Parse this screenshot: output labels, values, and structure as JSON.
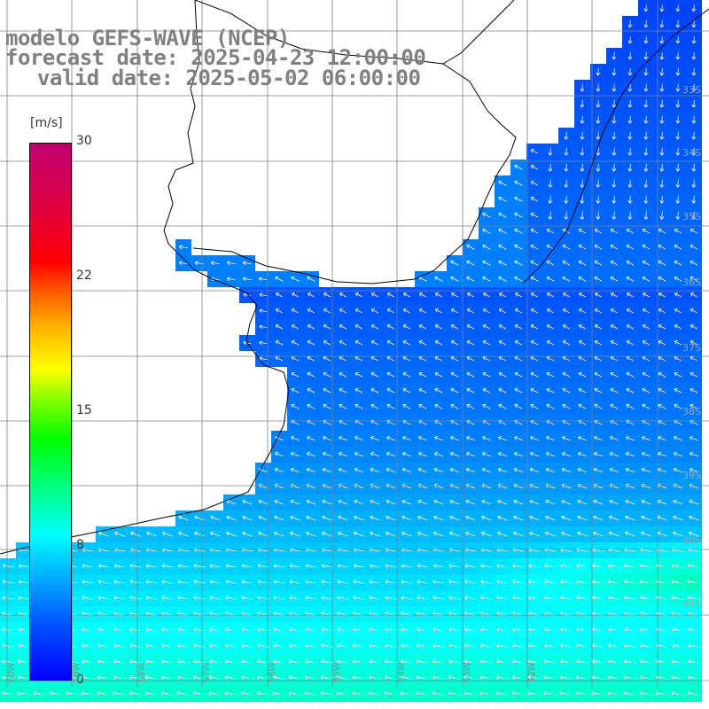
{
  "title": {
    "line1": "modelo GEFS-WAVE (NCEP)",
    "line2": "forecast date: 2025-04-23 12:00:00",
    "line3": "valid date: 2025-05-02 06:00:00"
  },
  "colorbar": {
    "unit": "[m/s]",
    "ticks": [
      "30",
      "22",
      "15",
      "8",
      "0"
    ],
    "tick_values": [
      30,
      22,
      15,
      8,
      0
    ],
    "min": 0,
    "max": 30
  },
  "lat_labels": [
    "33S",
    "34S",
    "35S",
    "36S",
    "37S",
    "38S",
    "39S",
    "40S",
    "41S"
  ],
  "lon_labels": [
    "60W",
    "59W",
    "58W",
    "57W",
    "56W",
    "55W",
    "54W",
    "53W",
    "52W"
  ],
  "colors": {
    "land": "#ffffff",
    "coast": "#000000",
    "grid": "#808080",
    "title": "#808080",
    "arrow": "#ffffff",
    "dark_blue": "#0000ff",
    "light_blue": "#00a0ff",
    "cyan": "#00ffff",
    "green": "#00ff00"
  }
}
